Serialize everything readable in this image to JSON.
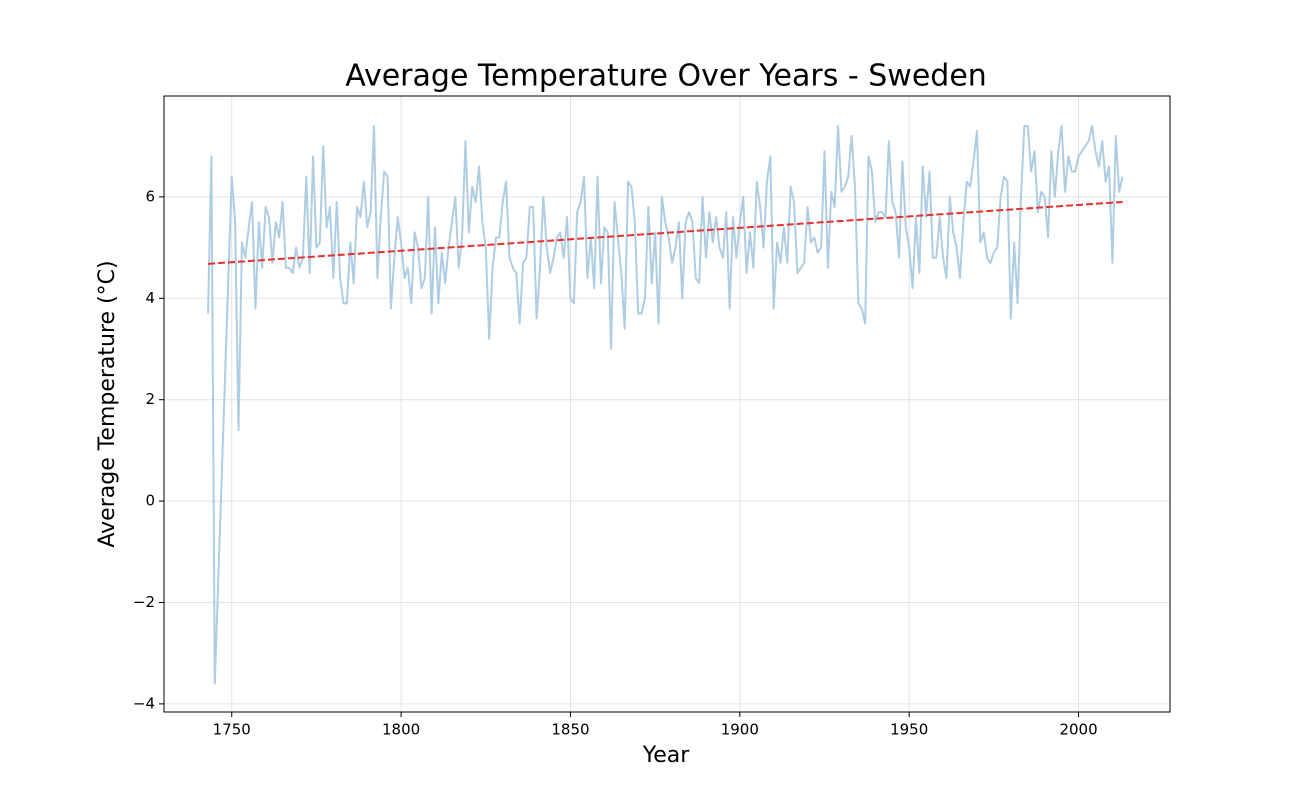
{
  "chart_data": {
    "type": "line",
    "title": "Average Temperature Over Years - Sweden",
    "xlabel": "Year",
    "ylabel": "Average Temperature (°C)",
    "xlim": [
      1730,
      2027
    ],
    "ylim": [
      -4.16,
      7.99
    ],
    "xticks": [
      1750,
      1800,
      1850,
      1900,
      1950,
      2000
    ],
    "yticks": [
      {
        "value": -4,
        "label": "−4"
      },
      {
        "value": -2,
        "label": "−2"
      },
      0,
      2,
      4,
      6
    ],
    "grid": true,
    "series": [
      {
        "color": "#aecde2",
        "style": "solid",
        "x": [
          1743,
          1744,
          1745,
          1750,
          1751,
          1752,
          1753,
          1754,
          1755,
          1756,
          1757,
          1758,
          1759,
          1760,
          1761,
          1762,
          1763,
          1764,
          1765,
          1766,
          1767,
          1768,
          1769,
          1770,
          1771,
          1772,
          1773,
          1774,
          1775,
          1776,
          1777,
          1778,
          1779,
          1780,
          1781,
          1782,
          1783,
          1784,
          1785,
          1786,
          1787,
          1788,
          1789,
          1790,
          1791,
          1792,
          1793,
          1794,
          1795,
          1796,
          1797,
          1798,
          1799,
          1800,
          1801,
          1802,
          1803,
          1804,
          1805,
          1806,
          1807,
          1808,
          1809,
          1810,
          1811,
          1812,
          1813,
          1814,
          1815,
          1816,
          1817,
          1818,
          1819,
          1820,
          1821,
          1822,
          1823,
          1824,
          1825,
          1826,
          1827,
          1828,
          1829,
          1830,
          1831,
          1832,
          1833,
          1834,
          1835,
          1836,
          1837,
          1838,
          1839,
          1840,
          1841,
          1842,
          1843,
          1844,
          1845,
          1846,
          1847,
          1848,
          1849,
          1850,
          1851,
          1852,
          1853,
          1854,
          1855,
          1856,
          1857,
          1858,
          1859,
          1860,
          1861,
          1862,
          1863,
          1864,
          1865,
          1866,
          1867,
          1868,
          1869,
          1870,
          1871,
          1872,
          1873,
          1874,
          1875,
          1876,
          1877,
          1878,
          1879,
          1880,
          1881,
          1882,
          1883,
          1884,
          1885,
          1886,
          1887,
          1888,
          1889,
          1890,
          1891,
          1892,
          1893,
          1894,
          1895,
          1896,
          1897,
          1898,
          1899,
          1900,
          1901,
          1902,
          1903,
          1904,
          1905,
          1906,
          1907,
          1908,
          1909,
          1910,
          1911,
          1912,
          1913,
          1914,
          1915,
          1916,
          1917,
          1918,
          1919,
          1920,
          1921,
          1922,
          1923,
          1924,
          1925,
          1926,
          1927,
          1928,
          1929,
          1930,
          1931,
          1932,
          1933,
          1934,
          1935,
          1936,
          1937,
          1938,
          1939,
          1940,
          1941,
          1942,
          1943,
          1944,
          1945,
          1946,
          1947,
          1948,
          1949,
          1950,
          1951,
          1952,
          1953,
          1954,
          1955,
          1956,
          1957,
          1958,
          1959,
          1960,
          1961,
          1962,
          1963,
          1964,
          1965,
          1966,
          1967,
          1968,
          1969,
          1970,
          1971,
          1972,
          1973,
          1974,
          1975,
          1976,
          1977,
          1978,
          1979,
          1980,
          1981,
          1982,
          1983,
          1984,
          1985,
          1986,
          1987,
          1988,
          1989,
          1990,
          1991,
          1992,
          1993,
          1994,
          1995,
          1996,
          1997,
          1998,
          1999,
          2000,
          2001,
          2002,
          2003,
          2004,
          2005,
          2006,
          2007,
          2008,
          2009,
          2010,
          2011,
          2012,
          2013
        ],
        "values": [
          3.7,
          6.8,
          -3.6,
          6.4,
          5.5,
          1.4,
          5.1,
          4.8,
          5.4,
          5.9,
          3.8,
          5.5,
          4.6,
          5.8,
          5.6,
          4.7,
          5.5,
          5.2,
          5.9,
          4.6,
          4.6,
          4.5,
          5.0,
          4.6,
          4.8,
          6.4,
          4.5,
          6.8,
          5.0,
          5.1,
          7.0,
          5.4,
          5.8,
          4.4,
          5.9,
          4.4,
          3.9,
          3.9,
          5.1,
          4.3,
          5.8,
          5.6,
          6.3,
          5.4,
          5.7,
          7.4,
          4.4,
          5.6,
          6.5,
          6.4,
          3.8,
          4.8,
          5.6,
          5.1,
          4.4,
          4.6,
          3.9,
          5.3,
          5.0,
          4.2,
          4.4,
          6.0,
          3.7,
          5.4,
          3.9,
          4.9,
          4.3,
          5.0,
          5.5,
          6.0,
          4.6,
          5.2,
          7.1,
          5.3,
          6.2,
          5.9,
          6.6,
          5.5,
          5.0,
          3.2,
          4.6,
          5.2,
          5.2,
          5.9,
          6.3,
          4.8,
          4.6,
          4.5,
          3.5,
          4.7,
          4.8,
          5.8,
          5.8,
          3.6,
          4.6,
          6.0,
          5.0,
          4.5,
          4.8,
          5.2,
          5.3,
          4.8,
          5.6,
          4.0,
          3.9,
          5.7,
          5.9,
          6.4,
          4.4,
          5.2,
          4.2,
          6.4,
          4.3,
          5.4,
          5.3,
          3.0,
          5.9,
          5.2,
          4.5,
          3.4,
          6.3,
          6.2,
          5.5,
          3.7,
          3.7,
          4.0,
          5.8,
          4.3,
          5.3,
          3.5,
          6.0,
          5.5,
          5.2,
          4.7,
          5.0,
          5.5,
          4.0,
          5.5,
          5.7,
          5.5,
          4.4,
          4.3,
          6.0,
          4.8,
          5.7,
          5.1,
          5.6,
          5.0,
          4.8,
          5.7,
          3.8,
          5.6,
          4.8,
          5.5,
          6.0,
          4.5,
          5.3,
          4.6,
          6.3,
          5.8,
          5.0,
          6.3,
          6.8,
          3.8,
          5.1,
          4.7,
          5.4,
          4.7,
          6.2,
          5.9,
          4.5,
          4.6,
          4.7,
          5.8,
          5.1,
          5.2,
          4.9,
          5.0,
          6.9,
          4.6,
          6.1,
          5.8,
          7.4,
          6.1,
          6.2,
          6.4,
          7.2,
          6.2,
          3.9,
          3.8,
          3.5,
          6.8,
          6.5,
          5.5,
          5.7,
          5.7,
          5.6,
          7.1,
          5.9,
          5.7,
          4.8,
          6.7,
          5.4,
          5.0,
          4.2,
          5.6,
          4.5,
          6.6,
          5.6,
          6.5,
          4.8,
          4.8,
          5.6,
          4.8,
          4.4,
          6.0,
          5.3,
          5.0,
          4.4,
          5.5,
          6.3,
          6.2,
          6.7,
          7.3,
          5.1,
          5.3,
          4.8,
          4.7,
          4.9,
          5.0,
          6.0,
          6.4,
          6.3,
          3.6,
          5.1,
          3.9,
          6.0,
          7.4,
          7.4,
          6.5,
          6.9,
          5.7,
          6.1,
          6.0,
          5.2,
          6.9,
          6.0,
          6.9,
          7.4,
          6.1,
          6.8,
          6.5,
          6.5,
          6.8,
          6.9,
          7.0,
          7.1,
          7.4,
          6.9,
          6.6,
          7.1,
          6.3,
          6.6,
          4.7,
          7.2,
          6.1,
          6.4
        ]
      },
      {
        "color": "#e8302c",
        "style": "dashed",
        "x": [
          1743,
          2013
        ],
        "values": [
          4.68,
          5.9
        ]
      }
    ]
  }
}
